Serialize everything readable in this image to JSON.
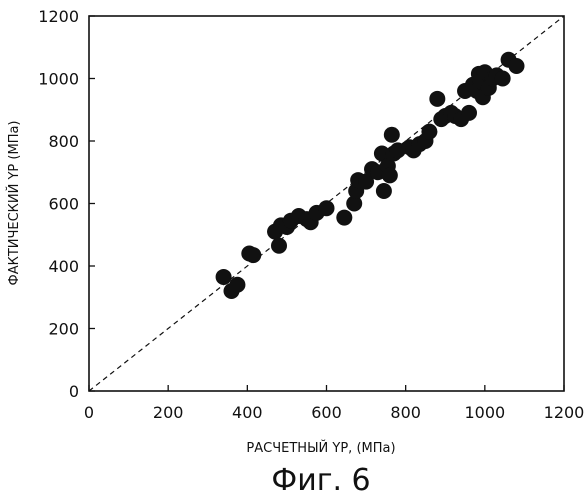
{
  "chart_data": {
    "type": "scatter",
    "title": "",
    "xlabel": "РАСЧЕТНЫЙ YP, (МПа)",
    "ylabel": "ФАКТИЧЕСКИЙ YP (МПа)",
    "xlim": [
      0,
      1200
    ],
    "ylim": [
      0,
      1200
    ],
    "x_ticks": [
      "0",
      "200",
      "400",
      "600",
      "800",
      "1000",
      "1200"
    ],
    "y_ticks": [
      "0",
      "200",
      "400",
      "600",
      "800",
      "1000",
      "1200"
    ],
    "grid": false,
    "reference_line": "y = x (dashed)",
    "marker_color": "#111111",
    "series": [
      {
        "points": [
          [
            340,
            365
          ],
          [
            360,
            320
          ],
          [
            375,
            340
          ],
          [
            405,
            440
          ],
          [
            415,
            435
          ],
          [
            470,
            510
          ],
          [
            480,
            465
          ],
          [
            485,
            530
          ],
          [
            500,
            525
          ],
          [
            510,
            545
          ],
          [
            530,
            560
          ],
          [
            550,
            550
          ],
          [
            560,
            540
          ],
          [
            575,
            570
          ],
          [
            600,
            585
          ],
          [
            645,
            555
          ],
          [
            670,
            600
          ],
          [
            675,
            640
          ],
          [
            680,
            675
          ],
          [
            700,
            670
          ],
          [
            715,
            710
          ],
          [
            730,
            700
          ],
          [
            740,
            760
          ],
          [
            745,
            640
          ],
          [
            755,
            720
          ],
          [
            760,
            690
          ],
          [
            765,
            820
          ],
          [
            770,
            760
          ],
          [
            780,
            770
          ],
          [
            810,
            780
          ],
          [
            820,
            770
          ],
          [
            835,
            790
          ],
          [
            850,
            800
          ],
          [
            860,
            830
          ],
          [
            880,
            935
          ],
          [
            890,
            870
          ],
          [
            900,
            880
          ],
          [
            915,
            890
          ],
          [
            925,
            880
          ],
          [
            940,
            870
          ],
          [
            950,
            960
          ],
          [
            960,
            890
          ],
          [
            970,
            980
          ],
          [
            980,
            960
          ],
          [
            985,
            1015
          ],
          [
            990,
            990
          ],
          [
            995,
            940
          ],
          [
            1000,
            1020
          ],
          [
            1010,
            970
          ],
          [
            1020,
            1000
          ],
          [
            1030,
            1010
          ],
          [
            1045,
            1000
          ],
          [
            1060,
            1060
          ],
          [
            1080,
            1040
          ]
        ]
      }
    ]
  },
  "figure": {
    "caption": "Фиг. 6"
  }
}
